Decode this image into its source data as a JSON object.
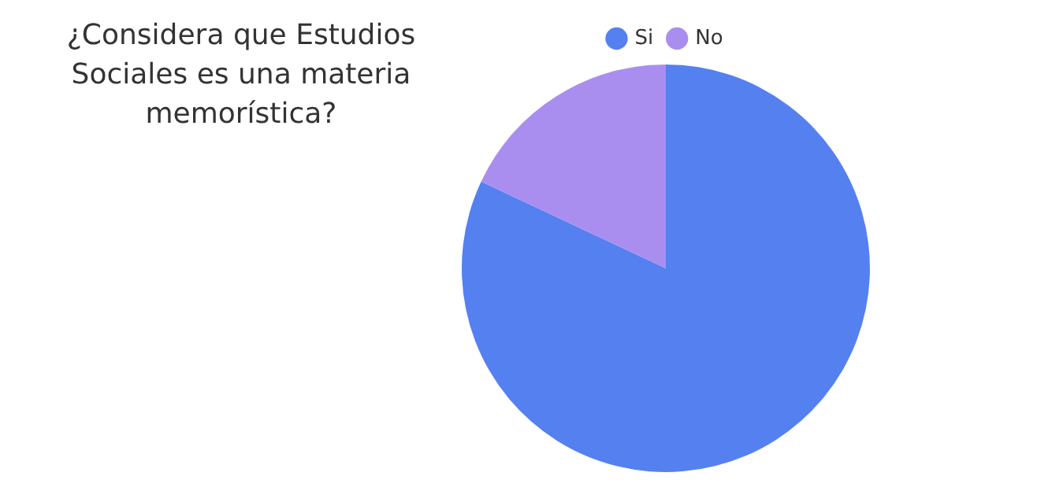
{
  "chart_data": {
    "type": "pie",
    "title": "¿Considera que Estudios Sociales es una materia memorística?",
    "categories": [
      "Si",
      "No"
    ],
    "values": [
      82,
      18
    ],
    "colors": [
      "#5580f0",
      "#a98ef0"
    ],
    "legend": "top"
  }
}
